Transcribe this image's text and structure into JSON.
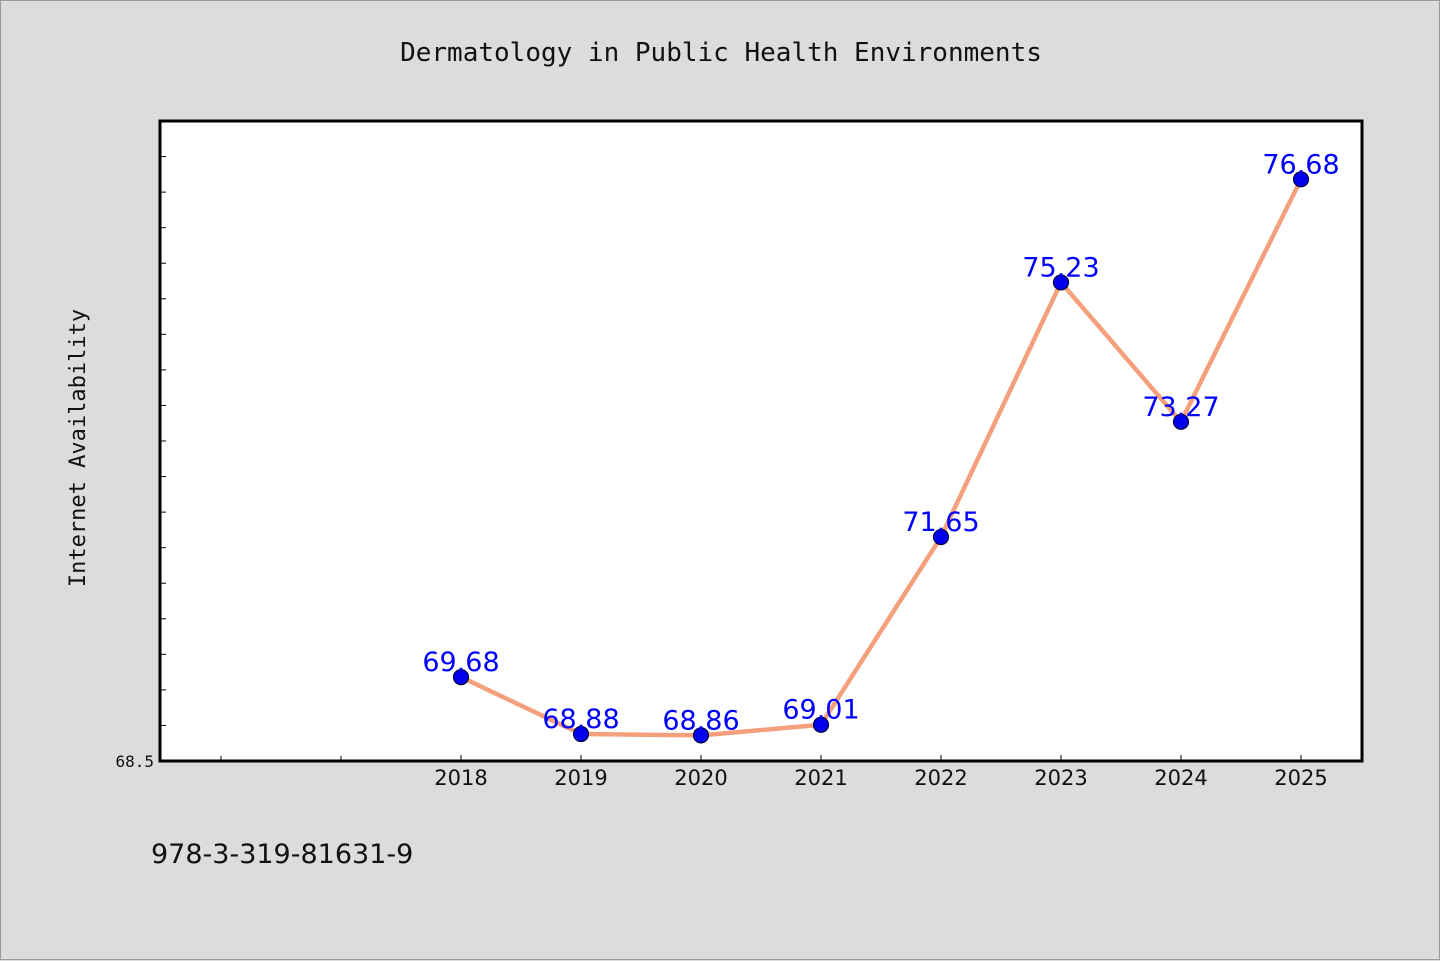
{
  "chart_data": {
    "type": "line",
    "title": "Dermatology in Public Health Environments",
    "xlabel": "",
    "ylabel": "Internet Availability",
    "categories": [
      "2018",
      "2019",
      "2020",
      "2021",
      "2022",
      "2023",
      "2024",
      "2025"
    ],
    "series": [
      {
        "values": [
          69.68,
          68.88,
          68.86,
          69.01,
          71.65,
          75.23,
          73.27,
          76.68
        ],
        "data_labels": [
          "69.68",
          "68.88",
          "68.86",
          "69.01",
          "71.65",
          "75.23",
          "73.27",
          "76.68"
        ]
      }
    ],
    "ylim": [
      68.5,
      77.5
    ],
    "ytick_labels": [
      "68.5"
    ],
    "grid": false,
    "legend": "none",
    "colors": {
      "line": "#f4a07c",
      "marker": "#0000ee",
      "marker_edge": "#00003a",
      "data_label": "#0000ff",
      "plot_background": "#ffffff",
      "figure_background": "#dcdcdc"
    }
  },
  "footer": {
    "isbn": "978-3-319-81631-9"
  }
}
